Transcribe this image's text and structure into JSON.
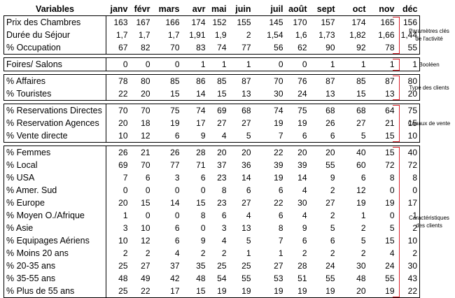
{
  "header": {
    "variables": "Variables",
    "months": [
      "janv",
      "févr",
      "mars",
      "avr",
      "mai",
      "juin",
      "juil",
      "août",
      "sept",
      "oct",
      "nov",
      "déc"
    ]
  },
  "groups": [
    {
      "label": [
        "Paramètres clés",
        "de l'activité"
      ],
      "rows": [
        {
          "name": "Prix des Chambres",
          "values": [
            "163",
            "167",
            "166",
            "174",
            "152",
            "155",
            "145",
            "170",
            "157",
            "174",
            "165",
            "156"
          ]
        },
        {
          "name": "Durée du Séjour",
          "values": [
            "1,7",
            "1,7",
            "1,7",
            "1,91",
            "1,9",
            "2",
            "1,54",
            "1,6",
            "1,73",
            "1,82",
            "1,66",
            "1,44"
          ]
        },
        {
          "name": "% Occupation",
          "values": [
            "67",
            "82",
            "70",
            "83",
            "74",
            "77",
            "56",
            "62",
            "90",
            "92",
            "78",
            "55"
          ]
        }
      ]
    },
    {
      "label": [
        "Booléen"
      ],
      "rows": [
        {
          "name": "Foires/ Salons",
          "values": [
            "0",
            "0",
            "0",
            "1",
            "1",
            "1",
            "0",
            "0",
            "1",
            "1",
            "1",
            "1"
          ]
        }
      ]
    },
    {
      "label": [
        "Type des clients"
      ],
      "rows": [
        {
          "name": "% Affaires",
          "values": [
            "78",
            "80",
            "85",
            "86",
            "85",
            "87",
            "70",
            "76",
            "87",
            "85",
            "87",
            "80"
          ]
        },
        {
          "name": "% Touristes",
          "values": [
            "22",
            "20",
            "15",
            "14",
            "15",
            "13",
            "30",
            "24",
            "13",
            "15",
            "13",
            "20"
          ]
        }
      ]
    },
    {
      "label": [
        "Canaux de vente"
      ],
      "rows": [
        {
          "name": "% Reservations Directes",
          "values": [
            "70",
            "70",
            "75",
            "74",
            "69",
            "68",
            "74",
            "75",
            "68",
            "68",
            "64",
            "75"
          ]
        },
        {
          "name": "% Reservation Agences",
          "values": [
            "20",
            "18",
            "19",
            "17",
            "27",
            "27",
            "19",
            "19",
            "26",
            "27",
            "21",
            "15"
          ]
        },
        {
          "name": "% Vente directe",
          "values": [
            "10",
            "12",
            "6",
            "9",
            "4",
            "5",
            "7",
            "6",
            "6",
            "5",
            "15",
            "10"
          ]
        }
      ]
    },
    {
      "label": [
        "Caractéristiques",
        "des clients"
      ],
      "rows": [
        {
          "name": "% Femmes",
          "values": [
            "26",
            "21",
            "26",
            "28",
            "20",
            "20",
            "22",
            "20",
            "20",
            "40",
            "15",
            "40"
          ]
        },
        {
          "name": "% Local",
          "values": [
            "69",
            "70",
            "77",
            "71",
            "37",
            "36",
            "39",
            "39",
            "55",
            "60",
            "72",
            "72"
          ]
        },
        {
          "name": "% USA",
          "values": [
            "7",
            "6",
            "3",
            "6",
            "23",
            "14",
            "19",
            "14",
            "9",
            "6",
            "8",
            "8"
          ]
        },
        {
          "name": "% Amer. Sud",
          "values": [
            "0",
            "0",
            "0",
            "0",
            "8",
            "6",
            "6",
            "4",
            "2",
            "12",
            "0",
            "0"
          ]
        },
        {
          "name": "% Europe",
          "values": [
            "20",
            "15",
            "14",
            "15",
            "23",
            "27",
            "22",
            "30",
            "27",
            "19",
            "19",
            "17"
          ]
        },
        {
          "name": "% Moyen O./Afrique",
          "values": [
            "1",
            "0",
            "0",
            "8",
            "6",
            "4",
            "6",
            "4",
            "2",
            "1",
            "0",
            "1"
          ]
        },
        {
          "name": "% Asie",
          "values": [
            "3",
            "10",
            "6",
            "0",
            "3",
            "13",
            "8",
            "9",
            "5",
            "2",
            "5",
            "2"
          ]
        },
        {
          "name": "% Equipages Aériens",
          "values": [
            "10",
            "12",
            "6",
            "9",
            "4",
            "5",
            "7",
            "6",
            "6",
            "5",
            "15",
            "10"
          ]
        },
        {
          "name": "% Moins 20 ans",
          "values": [
            "2",
            "2",
            "4",
            "2",
            "2",
            "1",
            "1",
            "2",
            "2",
            "2",
            "4",
            "2"
          ]
        },
        {
          "name": "% 20-35 ans",
          "values": [
            "25",
            "27",
            "37",
            "35",
            "25",
            "25",
            "27",
            "28",
            "24",
            "30",
            "24",
            "30"
          ]
        },
        {
          "name": "% 35-55 ans",
          "values": [
            "48",
            "49",
            "42",
            "48",
            "54",
            "55",
            "53",
            "51",
            "55",
            "48",
            "55",
            "43"
          ]
        },
        {
          "name": "% Plus de 55 ans",
          "values": [
            "25",
            "22",
            "17",
            "15",
            "19",
            "19",
            "19",
            "19",
            "19",
            "20",
            "19",
            "22"
          ]
        }
      ]
    }
  ]
}
